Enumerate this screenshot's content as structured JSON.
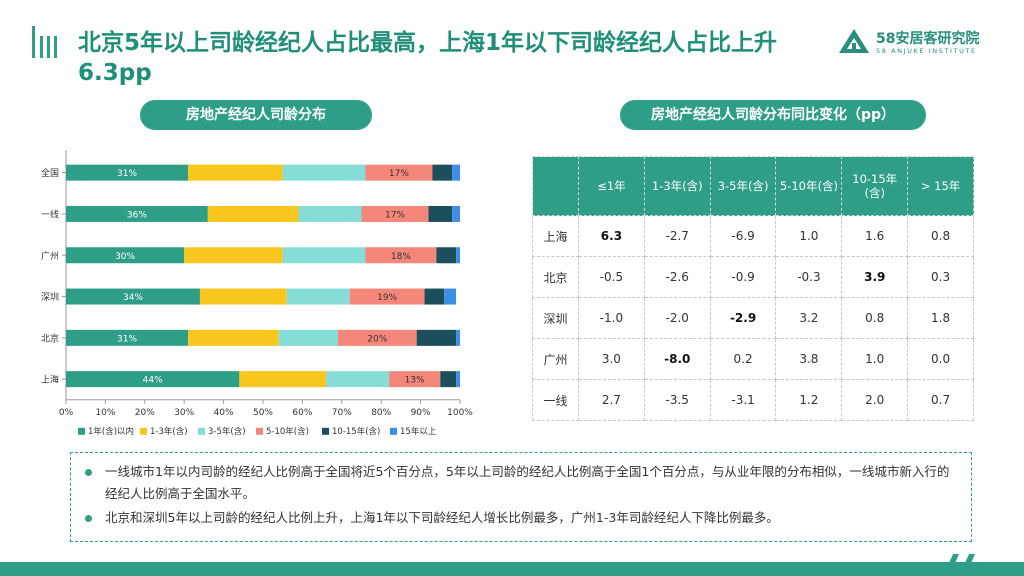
{
  "page": {
    "title": "北京5年以上司龄经纪人占比最高，上海1年以下司龄经纪人占比上升6.3pp",
    "brand_name": "58安居客研究院",
    "brand_sub": "58 ANJUKE INSTITUTE",
    "left_pill": "房地产经纪人司龄分布",
    "right_pill": "房地产经纪人司龄分布同比变化（pp）"
  },
  "colors": {
    "accent": "#2e9f86",
    "series": [
      "#2e9f86",
      "#f8c61c",
      "#86ddd8",
      "#f4877a",
      "#1d4e5c",
      "#3f8ee6"
    ]
  },
  "chart_data": {
    "type": "bar",
    "orientation": "horizontal",
    "stacked": true,
    "categories": [
      "全国",
      "一线",
      "广州",
      "深圳",
      "北京",
      "上海"
    ],
    "series": [
      {
        "name": "1年(含)以内",
        "values": [
          31,
          36,
          30,
          34,
          31,
          44
        ]
      },
      {
        "name": "1-3年(含)",
        "values": [
          24,
          23,
          25,
          22,
          23,
          22
        ]
      },
      {
        "name": "3-5年(含)",
        "values": [
          21,
          16,
          21,
          16,
          15,
          16
        ]
      },
      {
        "name": "5-10年(含)",
        "values": [
          17,
          17,
          18,
          19,
          20,
          13
        ]
      },
      {
        "name": "10-15年(含)",
        "values": [
          5,
          6,
          5,
          5,
          10,
          4
        ]
      },
      {
        "name": "15年以上",
        "values": [
          2,
          2,
          1,
          3,
          1,
          1
        ]
      }
    ],
    "data_labels": {
      "1年(含)以内": [
        "31%",
        "36%",
        "30%",
        "34%",
        "31%",
        "44%"
      ],
      "5-10年(含)": [
        "17%",
        "17%",
        "18%",
        "19%",
        "20%",
        "13%"
      ]
    },
    "x_ticks": [
      "0%",
      "10%",
      "20%",
      "30%",
      "40%",
      "50%",
      "60%",
      "70%",
      "80%",
      "90%",
      "100%"
    ],
    "xlim": [
      0,
      100
    ],
    "grid": false,
    "legend": "bottom"
  },
  "table": {
    "headers": [
      "≤1年",
      "1-3年(含)",
      "3-5年(含)",
      "5-10年(含)",
      "10-15年(含)",
      "> 15年"
    ],
    "rows": [
      {
        "city": "上海",
        "values": [
          "6.3",
          "-2.7",
          "-6.9",
          "1.0",
          "1.6",
          "0.8"
        ],
        "bold": [
          0
        ]
      },
      {
        "city": "北京",
        "values": [
          "-0.5",
          "-2.6",
          "-0.9",
          "-0.3",
          "3.9",
          "0.3"
        ],
        "bold": [
          4
        ]
      },
      {
        "city": "深圳",
        "values": [
          "-1.0",
          "-2.0",
          "-2.9",
          "3.2",
          "0.8",
          "1.8"
        ],
        "bold": [
          2
        ]
      },
      {
        "city": "广州",
        "values": [
          "3.0",
          "-8.0",
          "0.2",
          "3.8",
          "1.0",
          "0.0"
        ],
        "bold": [
          1
        ]
      },
      {
        "city": "一线",
        "values": [
          "2.7",
          "-3.5",
          "-3.1",
          "1.2",
          "2.0",
          "0.7"
        ],
        "bold": []
      }
    ]
  },
  "notes": [
    "一线城市1年以内司龄的经纪人比例高于全国将近5个百分点，5年以上司龄的经纪人比例高于全国1个百分点，与从业年限的分布相似，一线城市新入行的经纪人比例高于全国水平。",
    "北京和深圳5年以上司龄的经纪人比例上升，上海1年以下司龄经纪人增长比例最多，广州1-3年司龄经纪人下降比例最多。"
  ]
}
